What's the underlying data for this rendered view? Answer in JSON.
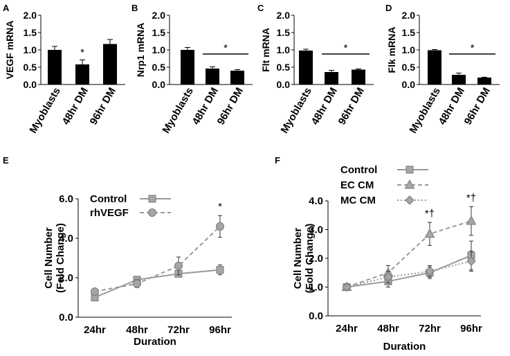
{
  "chart_data": [
    {
      "panel": "A",
      "type": "bar",
      "ylabel": "VEGF mRNA",
      "ylim": [
        0,
        2.0
      ],
      "yticks": [
        "0.0",
        "0.5",
        "1.0",
        "1.5",
        "2.0"
      ],
      "categories": [
        "Myoblasts",
        "48hr DM",
        "96hr DM"
      ],
      "values": [
        1.0,
        0.58,
        1.17
      ],
      "errors": [
        0.1,
        0.13,
        0.13
      ],
      "annotations": [
        {
          "text": "*",
          "over": [
            1,
            1
          ]
        }
      ]
    },
    {
      "panel": "B",
      "type": "bar",
      "ylabel": "Nrp1 mRNA",
      "ylim": [
        0,
        2.0
      ],
      "yticks": [
        "0.0",
        "0.5",
        "1.0",
        "1.5",
        "2.0"
      ],
      "categories": [
        "Myoblasts",
        "48hr DM",
        "96hr DM"
      ],
      "values": [
        1.0,
        0.46,
        0.4
      ],
      "errors": [
        0.07,
        0.05,
        0.03
      ],
      "annotations": [
        {
          "text": "*",
          "over": [
            1,
            2
          ]
        }
      ]
    },
    {
      "panel": "C",
      "type": "bar",
      "ylabel": "Flt mRNA",
      "ylim": [
        0,
        2.0
      ],
      "yticks": [
        "0.0",
        "0.5",
        "1.0",
        "1.5",
        "2.0"
      ],
      "categories": [
        "Myoblasts",
        "48hr DM",
        "96hr DM"
      ],
      "values": [
        0.98,
        0.36,
        0.43
      ],
      "errors": [
        0.04,
        0.05,
        0.02
      ],
      "annotations": [
        {
          "text": "*",
          "over": [
            1,
            2
          ]
        }
      ]
    },
    {
      "panel": "D",
      "type": "bar",
      "ylabel": "Flk mRNA",
      "ylim": [
        0,
        2.0
      ],
      "yticks": [
        "0.0",
        "0.5",
        "1.0",
        "1.5",
        "2.0"
      ],
      "categories": [
        "Myoblasts",
        "48hr DM",
        "96hr DM"
      ],
      "values": [
        0.99,
        0.28,
        0.2
      ],
      "errors": [
        0.02,
        0.05,
        0.01
      ],
      "annotations": [
        {
          "text": "*",
          "over": [
            1,
            2
          ]
        }
      ]
    },
    {
      "panel": "E",
      "type": "line",
      "xlabel": "Duration",
      "ylabel": "Cell Number (Fold Change)",
      "ylabel_lines": [
        "Cell Number",
        "(Fold Change)"
      ],
      "ylim": [
        0,
        6.0
      ],
      "yticks": [
        "0.0",
        "2.0",
        "4.0",
        "6.0"
      ],
      "categories": [
        "24hr",
        "48hr",
        "72hr",
        "96hr"
      ],
      "series": [
        {
          "name": "Control",
          "marker": "square",
          "dash": "solid",
          "color": "#999999",
          "values": [
            1.0,
            1.9,
            2.2,
            2.4
          ],
          "errors": [
            0.1,
            0.15,
            0.15,
            0.25
          ]
        },
        {
          "name": "rhVEGF",
          "marker": "circle",
          "dash": "dashed",
          "color": "#999999",
          "values": [
            1.3,
            1.7,
            2.6,
            4.6
          ],
          "errors": [
            0.15,
            0.2,
            0.45,
            0.55
          ]
        }
      ],
      "annotations": [
        {
          "text": "*",
          "category": 3
        }
      ]
    },
    {
      "panel": "F",
      "type": "line",
      "xlabel": "Duration",
      "ylabel": "Cell Number (Fold Change)",
      "ylabel_lines": [
        "Cell Number",
        "(Fold Change)"
      ],
      "ylim": [
        0,
        4.0
      ],
      "yticks": [
        "0.0",
        "1.0",
        "2.0",
        "3.0",
        "4.0"
      ],
      "categories": [
        "24hr",
        "48hr",
        "72hr",
        "96hr"
      ],
      "series": [
        {
          "name": "Control",
          "marker": "square",
          "dash": "solid",
          "color": "#999999",
          "values": [
            1.0,
            1.2,
            1.5,
            2.1
          ],
          "errors": [
            0.1,
            0.2,
            0.2,
            0.5
          ]
        },
        {
          "name": "EC CM",
          "marker": "triangle",
          "dash": "dashed",
          "color": "#999999",
          "values": [
            1.0,
            1.5,
            2.85,
            3.3
          ],
          "errors": [
            0.1,
            0.25,
            0.4,
            0.5
          ]
        },
        {
          "name": "MC CM",
          "marker": "diamond",
          "dash": "dotted",
          "color": "#999999",
          "values": [
            1.0,
            1.35,
            1.55,
            1.9
          ],
          "errors": [
            0.1,
            0.2,
            0.2,
            0.35
          ]
        }
      ],
      "annotations": [
        {
          "text": "*†",
          "category": 2
        },
        {
          "text": "*†",
          "category": 3
        }
      ]
    }
  ]
}
